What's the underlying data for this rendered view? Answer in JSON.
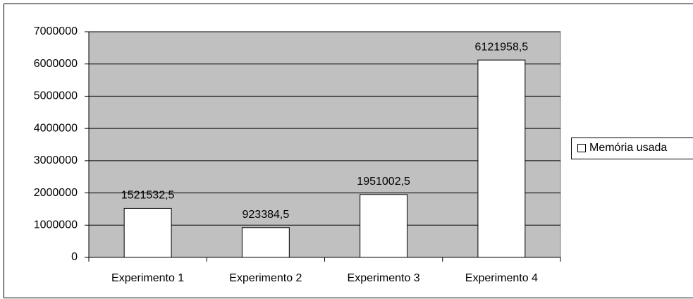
{
  "chart_data": {
    "type": "bar",
    "categories": [
      "Experimento 1",
      "Experimento 2",
      "Experimento 3",
      "Experimento 4"
    ],
    "series": [
      {
        "name": "Memória usada",
        "color": "#ffffff",
        "values": [
          1521532.5,
          923384.5,
          1951002.5,
          6121958.5
        ],
        "value_labels": [
          "1521532,5",
          "923384,5",
          "1951002,5",
          "6121958,5"
        ]
      }
    ],
    "ylim": [
      0,
      7000000
    ],
    "yticks": [
      0,
      1000000,
      2000000,
      3000000,
      4000000,
      5000000,
      6000000,
      7000000
    ],
    "grid": true,
    "legend": "right",
    "plot_background": "#c0c0c0"
  }
}
